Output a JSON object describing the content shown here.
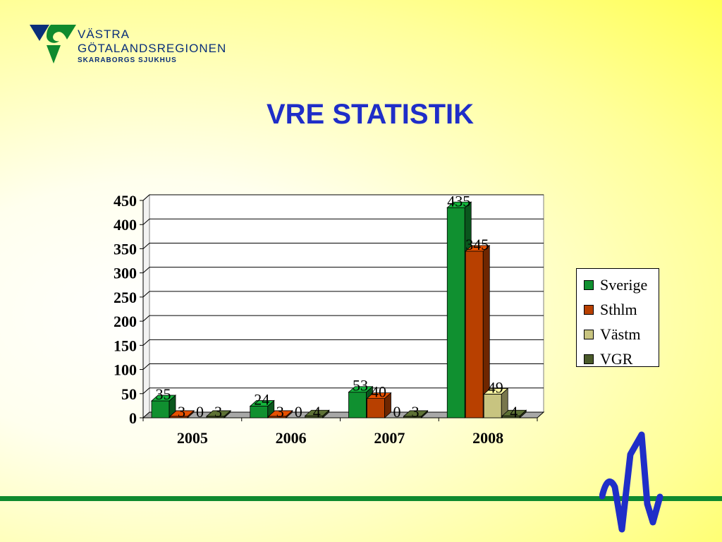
{
  "logo": {
    "line1": "VÄSTRA",
    "line2": "GÖTALANDSREGIONEN",
    "line3": "SKARABORGS SJUKHUS"
  },
  "slide": {
    "title": "VRE STATISTIK"
  },
  "colors": {
    "title": "#1f2ec8",
    "accent_green": "#0f8a2e",
    "logo_blue": "#0a2f7a",
    "ekg_blue": "#1f2ec8"
  },
  "chart_data": {
    "type": "bar",
    "categories": [
      "2005",
      "2006",
      "2007",
      "2008"
    ],
    "series": [
      {
        "name": "Sverige",
        "values": [
          35,
          24,
          53,
          435
        ],
        "color": "#109030"
      },
      {
        "name": "Sthlm",
        "values": [
          3,
          3,
          40,
          345
        ],
        "color": "#b84000"
      },
      {
        "name": "Västm",
        "values": [
          0,
          0,
          0,
          49
        ],
        "color": "#c8c480"
      },
      {
        "name": "VGR",
        "values": [
          3,
          4,
          3,
          4
        ],
        "color": "#4a5a2a"
      }
    ],
    "ylim": [
      0,
      450
    ],
    "yticks": [
      "0",
      "50",
      "100",
      "150",
      "200",
      "250",
      "300",
      "350",
      "400",
      "450"
    ],
    "grid": true,
    "legend": "right",
    "data_labels": true,
    "three_d": true
  }
}
